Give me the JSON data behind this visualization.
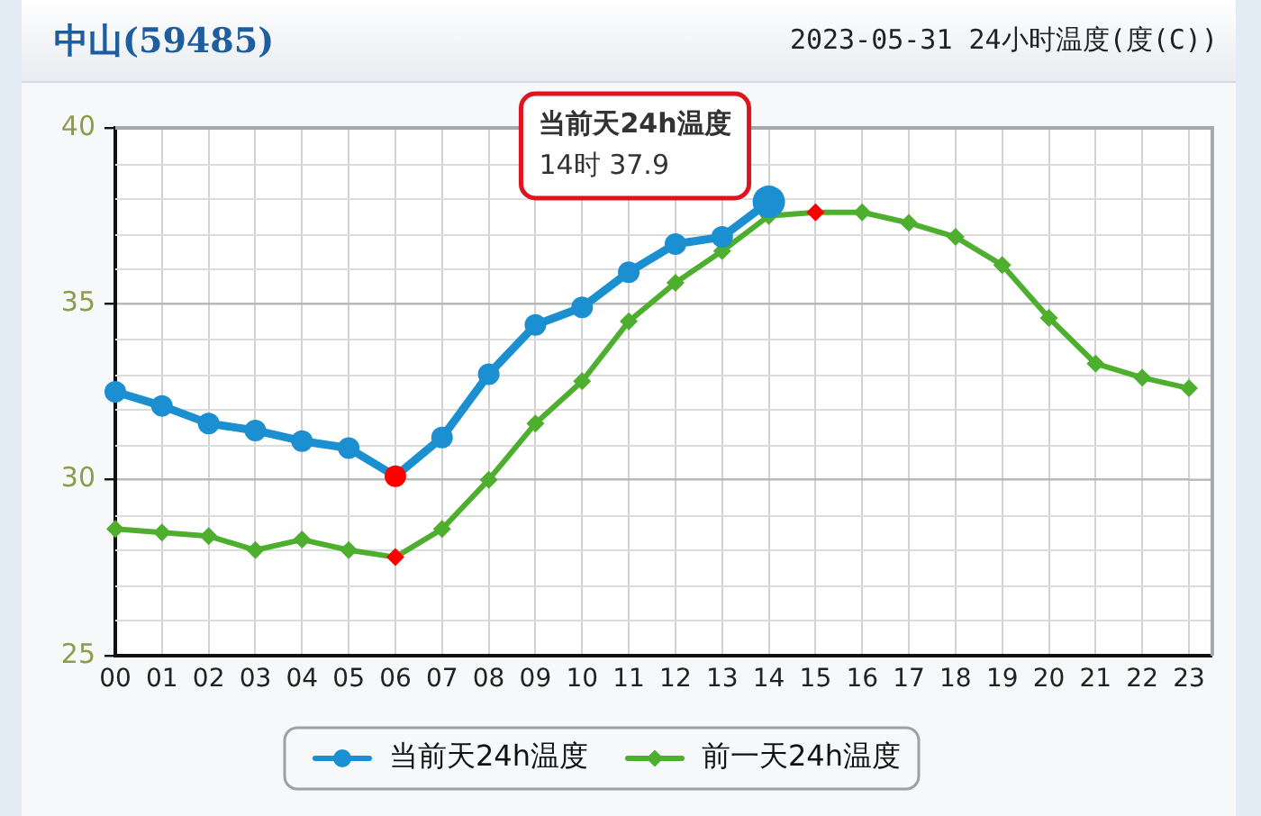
{
  "chart_data": {
    "type": "line",
    "title": "中山(59485)",
    "subtitle": "2023-05-31 24小时温度(度(C))",
    "categories": [
      "00",
      "01",
      "02",
      "03",
      "04",
      "05",
      "06",
      "07",
      "08",
      "09",
      "10",
      "11",
      "12",
      "13",
      "14",
      "15",
      "16",
      "17",
      "18",
      "19",
      "20",
      "21",
      "22",
      "23"
    ],
    "series": [
      {
        "name": "当前天24h温度",
        "color": "#1b8fcf",
        "marker": "circle",
        "values": [
          32.5,
          32.1,
          31.6,
          31.4,
          31.1,
          30.9,
          30.1,
          31.2,
          33.0,
          34.4,
          34.9,
          35.9,
          36.7,
          36.9,
          37.9,
          null,
          null,
          null,
          null,
          null,
          null,
          null,
          null,
          null
        ],
        "colors": [
          "#1b8fcf",
          "#1b8fcf",
          "#1b8fcf",
          "#1b8fcf",
          "#1b8fcf",
          "#1b8fcf",
          "#ff0000",
          "#1b8fcf",
          "#1b8fcf",
          "#1b8fcf",
          "#1b8fcf",
          "#1b8fcf",
          "#1b8fcf",
          "#1b8fcf",
          "#1b8fcf",
          null,
          null,
          null,
          null,
          null,
          null,
          null,
          null,
          null
        ]
      },
      {
        "name": "前一天24h温度",
        "color": "#4eae2e",
        "marker": "diamond",
        "values": [
          28.6,
          28.5,
          28.4,
          28.0,
          28.3,
          28.0,
          27.8,
          28.6,
          30.0,
          31.6,
          32.8,
          34.5,
          35.6,
          36.5,
          37.5,
          37.6,
          37.6,
          37.3,
          36.9,
          36.1,
          34.6,
          33.3,
          32.9,
          32.6
        ],
        "colors": [
          "#4eae2e",
          "#4eae2e",
          "#4eae2e",
          "#4eae2e",
          "#4eae2e",
          "#4eae2e",
          "#ff0000",
          "#4eae2e",
          "#4eae2e",
          "#4eae2e",
          "#4eae2e",
          "#4eae2e",
          "#4eae2e",
          "#4eae2e",
          "#4eae2e",
          "#ff0000",
          "#4eae2e",
          "#4eae2e",
          "#4eae2e",
          "#4eae2e",
          "#4eae2e",
          "#4eae2e",
          "#4eae2e",
          "#4eae2e"
        ]
      }
    ],
    "ylim": [
      25,
      40
    ],
    "yticks": [
      25,
      30,
      35,
      40
    ],
    "grid": true,
    "legend": "bottom",
    "annotations": [
      {
        "text": "当前天24h温度\n14时 37.9",
        "x": "14",
        "y": 37.9
      }
    ]
  }
}
